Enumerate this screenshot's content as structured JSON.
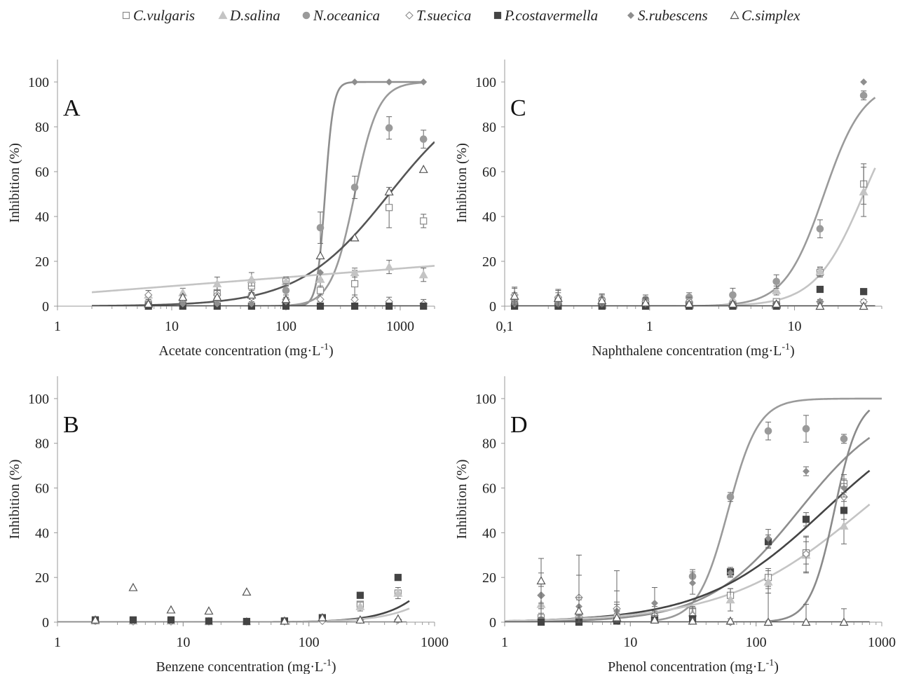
{
  "legend": [
    {
      "name": "C.vulgaris",
      "marker": "square-open"
    },
    {
      "name": "D.salina",
      "marker": "triangle-filled"
    },
    {
      "name": "N.oceanica",
      "marker": "circle-filled"
    },
    {
      "name": "T.suecica",
      "marker": "diamond-open"
    },
    {
      "name": "P.costavermella",
      "marker": "square-filled"
    },
    {
      "name": "S.rubescens",
      "marker": "diamond-filled"
    },
    {
      "name": "C.simplex",
      "marker": "triangle-open"
    }
  ],
  "colors": {
    "C.vulgaris": "#8a8a8a",
    "D.salina": "#c4c4c4",
    "N.oceanica": "#9a9a9a",
    "T.suecica": "#8a8a8a",
    "P.costavermella": "#444444",
    "S.rubescens": "#8e8e8e",
    "C.simplex": "#555555"
  },
  "chart_data": [
    {
      "panel": "A",
      "type": "scatter",
      "xscale": "log",
      "xlim": [
        1,
        2000
      ],
      "ylim": [
        0,
        110
      ],
      "xticks": [
        1,
        10,
        100,
        1000
      ],
      "xtick_labels": [
        "1",
        "10",
        "100",
        "1000"
      ],
      "yticks": [
        0,
        20,
        40,
        60,
        80,
        100
      ],
      "ytick_labels": [
        "0",
        "20",
        "40",
        "60",
        "80",
        "100"
      ],
      "xlabel": "Acetate concentration (mg·L",
      "xlabel_sup": "-1",
      "xlabel_end": ")",
      "ylabel": "Inhibition (%)",
      "x": [
        6.25,
        12.5,
        25,
        50,
        100,
        200,
        400,
        800,
        1600
      ],
      "series": [
        {
          "name": "C.vulgaris",
          "values": [
            1,
            1.5,
            6,
            9,
            11,
            7,
            10,
            44,
            38
          ],
          "err": [
            1,
            1.5,
            3,
            3,
            2,
            5,
            6,
            9,
            3
          ]
        },
        {
          "name": "D.salina",
          "values": [
            5,
            6,
            10,
            12,
            11,
            12,
            15,
            17.5,
            14
          ],
          "err": [
            2,
            2,
            3,
            3,
            2,
            3,
            2,
            3,
            3
          ]
        },
        {
          "name": "N.oceanica",
          "values": [
            1,
            1.5,
            3,
            5,
            7,
            35,
            53,
            79.5,
            74.5
          ],
          "err": [
            1,
            1,
            2,
            2,
            3,
            7,
            5,
            5,
            4
          ]
        },
        {
          "name": "T.suecica",
          "values": [
            5,
            3,
            5,
            4,
            3,
            3,
            3,
            2,
            1
          ],
          "err": [
            2,
            2,
            2,
            2,
            2,
            2,
            2,
            2,
            2
          ]
        },
        {
          "name": "P.costavermella",
          "values": [
            0,
            0,
            0,
            0,
            0,
            0,
            0,
            0,
            0
          ]
        },
        {
          "name": "S.rubescens",
          "values": [
            1,
            1,
            1,
            1,
            2,
            15,
            100,
            100,
            100
          ]
        },
        {
          "name": "C.simplex",
          "values": [
            1,
            4,
            4,
            5,
            3,
            22.5,
            30.5,
            51,
            61
          ]
        }
      ],
      "fits": [
        {
          "name": "S.rubescens",
          "top": 100,
          "ec50": 220,
          "hill": 12,
          "xmin": 100,
          "xmax": 1600
        },
        {
          "name": "N.oceanica",
          "top": 100,
          "ec50": 400,
          "hill": 4.2,
          "xmin": 50,
          "xmax": 1600
        },
        {
          "name": "C.simplex",
          "top": 100,
          "ec50": 800,
          "hill": 1.1,
          "xmin": 2,
          "xmax": 2000
        },
        {
          "name": "D.salina",
          "linear_log": true,
          "y_at_xmin": 6.2,
          "y_at_xmax": 18,
          "xmin": 2,
          "xmax": 2000
        },
        {
          "name": "P.costavermella",
          "flat": 0,
          "xmin": 6.25,
          "xmax": 1600
        }
      ]
    },
    {
      "panel": "B",
      "type": "scatter",
      "xscale": "log",
      "xlim": [
        1,
        1000
      ],
      "ylim": [
        0,
        110
      ],
      "xticks": [
        1,
        10,
        100,
        1000
      ],
      "xtick_labels": [
        "1",
        "10",
        "100",
        "1000"
      ],
      "yticks": [
        0,
        20,
        40,
        60,
        80,
        100
      ],
      "ytick_labels": [
        "0",
        "20",
        "40",
        "60",
        "80",
        "100"
      ],
      "xlabel": "Benzene concentration (mg·L",
      "xlabel_sup": "-1",
      "xlabel_end": ")",
      "ylabel": "Inhibition (%)",
      "x": [
        2,
        4,
        8,
        16,
        32,
        64,
        128,
        256,
        512
      ],
      "series": [
        {
          "name": "C.vulgaris",
          "values": [
            1,
            0.5,
            0.5,
            0.3,
            0.3,
            0.5,
            2,
            8,
            13
          ]
        },
        {
          "name": "D.salina",
          "values": [
            0.5,
            0.5,
            0.5,
            0.3,
            0.3,
            0.5,
            1.5,
            7,
            13
          ],
          "err": [
            0,
            0,
            0,
            0,
            0,
            0,
            1,
            2,
            2.5
          ]
        },
        {
          "name": "T.suecica",
          "values": [
            0.5,
            0.3,
            0.3,
            0.3,
            0.3,
            0.3,
            0.5,
            1,
            1
          ]
        },
        {
          "name": "P.costavermella",
          "values": [
            1,
            1,
            1,
            0.5,
            0.3,
            0.5,
            2,
            12,
            20
          ]
        },
        {
          "name": "C.simplex",
          "values": [
            1,
            15.5,
            5.5,
            5,
            13.5,
            0.5,
            2,
            1,
            1.5
          ]
        }
      ],
      "fits": [
        {
          "name": "P.costavermella",
          "top": 100,
          "ec50": 2000,
          "hill": 1.95,
          "xmin": 1,
          "xmax": 630
        },
        {
          "name": "D.salina",
          "top": 100,
          "ec50": 3000,
          "hill": 1.75,
          "xmin": 1,
          "xmax": 630
        },
        {
          "name": "T.suecica",
          "flat": 0,
          "xmin": 1,
          "xmax": 600
        }
      ]
    },
    {
      "panel": "C",
      "type": "scatter",
      "xscale": "log",
      "xlim": [
        0.1,
        40
      ],
      "ylim": [
        0,
        110
      ],
      "xticks": [
        0.1,
        1,
        10
      ],
      "xtick_labels": [
        "0,1",
        "1",
        "10"
      ],
      "yticks": [
        0,
        20,
        40,
        60,
        80,
        100
      ],
      "ytick_labels": [
        "0",
        "20",
        "40",
        "60",
        "80",
        "100"
      ],
      "xlabel": "Naphthalene concentration (mg·L",
      "xlabel_sup": "-1",
      "xlabel_end": ")",
      "ylabel": "Inhibition (%)",
      "x": [
        0.117,
        0.234,
        0.469,
        0.938,
        1.875,
        3.75,
        7.5,
        15,
        30
      ],
      "series": [
        {
          "name": "C.vulgaris",
          "values": [
            1,
            1,
            1,
            1,
            1,
            1,
            2,
            15,
            54.5
          ],
          "err": [
            1,
            1,
            1,
            1,
            1,
            1,
            1,
            2,
            9
          ]
        },
        {
          "name": "D.salina",
          "values": [
            2,
            2,
            2,
            2,
            3,
            3,
            7,
            15.5,
            51
          ],
          "err": [
            1,
            1,
            1,
            1,
            1,
            1,
            2,
            2,
            11
          ]
        },
        {
          "name": "N.oceanica",
          "values": [
            3,
            3,
            3,
            3,
            4,
            5,
            11,
            34.5,
            94
          ],
          "err": [
            3,
            3,
            2,
            2,
            2,
            3,
            3,
            4,
            2
          ]
        },
        {
          "name": "T.suecica",
          "values": [
            5,
            4,
            3,
            2,
            2,
            1,
            1,
            2,
            2
          ],
          "err": [
            3,
            3,
            2,
            2,
            2,
            1,
            1,
            1,
            1
          ]
        },
        {
          "name": "P.costavermella",
          "values": [
            0,
            0,
            0,
            0,
            0,
            0,
            0,
            7.5,
            6.5
          ]
        },
        {
          "name": "S.rubescens",
          "values": [
            1,
            1,
            1,
            1,
            1,
            1,
            1,
            2,
            100
          ]
        },
        {
          "name": "C.simplex",
          "values": [
            4.5,
            3.5,
            2.5,
            1.5,
            1,
            1,
            1,
            0,
            0
          ],
          "err": [
            4,
            4,
            3,
            2,
            1,
            1,
            1,
            1,
            0
          ]
        }
      ],
      "fits": [
        {
          "name": "N.oceanica",
          "top": 100,
          "ec50": 16,
          "hill": 3.2,
          "xmin": 1,
          "xmax": 36
        },
        {
          "name": "D.salina",
          "top": 100,
          "ec50": 30,
          "hill": 2.6,
          "xmin": 1,
          "xmax": 36
        },
        {
          "name": "P.costavermella",
          "flat": 0,
          "xmin": 0.117,
          "xmax": 36
        }
      ]
    },
    {
      "panel": "D",
      "type": "scatter",
      "xscale": "log",
      "xlim": [
        1,
        1000
      ],
      "ylim": [
        0,
        110
      ],
      "xticks": [
        1,
        10,
        100,
        1000
      ],
      "xtick_labels": [
        "1",
        "10",
        "100",
        "1000"
      ],
      "yticks": [
        0,
        20,
        40,
        60,
        80,
        100
      ],
      "ytick_labels": [
        "0",
        "20",
        "40",
        "60",
        "80",
        "100"
      ],
      "xlabel": "Phenol concentration (mg·L",
      "xlabel_sup": "-1",
      "xlabel_end": ")",
      "ylabel": "Inhibition (%)",
      "x": [
        1.95,
        3.9,
        7.8,
        15.6,
        31.25,
        62.5,
        125,
        250,
        500
      ],
      "series": [
        {
          "name": "C.vulgaris",
          "values": [
            2,
            2,
            2,
            2,
            5,
            12,
            20,
            31,
            62
          ],
          "err": [
            2,
            2,
            2,
            2,
            2,
            3,
            4,
            5,
            4
          ]
        },
        {
          "name": "D.salina",
          "values": [
            8,
            4,
            3,
            2,
            4,
            10,
            18,
            30,
            43
          ],
          "err": [
            8,
            6,
            5,
            3,
            3,
            5,
            5,
            8,
            8
          ]
        },
        {
          "name": "N.oceanica",
          "values": [
            1,
            1,
            1,
            2,
            20.5,
            56,
            85.5,
            86.5,
            82
          ],
          "err": [
            1,
            1,
            1,
            2,
            3,
            2,
            4,
            6,
            2
          ]
        },
        {
          "name": "T.suecica",
          "values": [
            12,
            11,
            6,
            3,
            3,
            0,
            0,
            30.5,
            56
          ],
          "err": [
            10,
            10,
            8,
            4,
            3,
            0,
            0,
            8,
            6
          ]
        },
        {
          "name": "P.costavermella",
          "values": [
            0,
            0,
            0.5,
            1,
            1.5,
            22.5,
            36,
            46,
            50
          ],
          "err": [
            0,
            0,
            0,
            0,
            0,
            2,
            3,
            3,
            4
          ]
        },
        {
          "name": "S.rubescens",
          "values": [
            12,
            7,
            5,
            8.5,
            17.5,
            22,
            37.5,
            67.5,
            60
          ],
          "err": [
            6,
            4,
            4,
            7,
            5,
            2,
            4,
            2,
            4
          ]
        },
        {
          "name": "C.simplex",
          "values": [
            18.5,
            5,
            2,
            1,
            0.5,
            0.5,
            0,
            0,
            0
          ],
          "err": [
            10,
            25,
            21,
            2,
            1,
            1,
            15,
            8,
            6
          ]
        }
      ],
      "fits": [
        {
          "name": "N.oceanica",
          "top": 100,
          "ec50": 60,
          "hill": 3.6,
          "xmin": 15,
          "xmax": 1000
        },
        {
          "name": "S.rubescens",
          "top": 100,
          "ec50": 220,
          "hill": 1.2,
          "xmin": 1,
          "xmax": 800
        },
        {
          "name": "P.costavermella",
          "top": 100,
          "ec50": 350,
          "hill": 0.9,
          "xmin": 1,
          "xmax": 800
        },
        {
          "name": "D.salina",
          "top": 100,
          "ec50": 700,
          "hill": 0.8,
          "xmin": 1,
          "xmax": 800
        },
        {
          "name": "T.suecica",
          "top": 100,
          "ec50": 420,
          "hill": 4.5,
          "xmin": 120,
          "xmax": 800
        },
        {
          "name": "C.simplex",
          "flat": 0,
          "xmin": 1,
          "xmax": 800
        }
      ]
    }
  ]
}
